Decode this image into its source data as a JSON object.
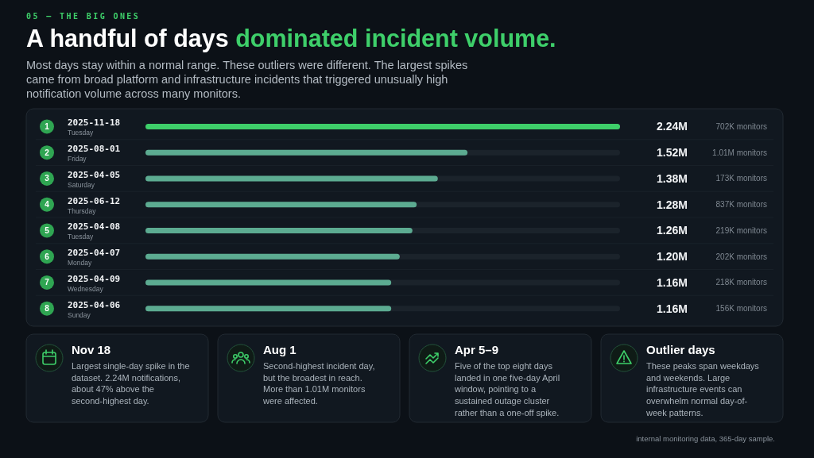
{
  "chart_data": {
    "type": "bar",
    "orientation": "horizontal",
    "title": "A handful of days dominated incident volume.",
    "subtitle": "Most days stay within a normal range. These outliers were different. The largest spikes came from broad platform and infrastructure incidents that triggered unusually high notification volume across many monitors.",
    "categories": [
      "2025-11-18\nTuesday",
      "2025-08-01\nFriday",
      "2025-04-05\nSaturday",
      "2025-06-12\nThursday",
      "2025-04-08\nTuesday",
      "2025-04-07\nMonday",
      "2025-04-09\nWednesday",
      "2025-04-06\nSunday"
    ],
    "values": [
      2.24,
      1.52,
      1.38,
      1.28,
      1.26,
      1.2,
      1.16,
      1.16
    ],
    "value_labels": [
      "2.24M",
      "1.52M",
      "1.38M",
      "1.28M",
      "1.26M",
      "1.20M",
      "1.16M",
      "1.16M"
    ],
    "colors": [
      "#3ecf6a",
      "#5cab91",
      "#5cab91",
      "#5cab91",
      "#5cab91",
      "#5cab91",
      "#5cab91",
      "#5cab91"
    ],
    "xlim": [
      0,
      2.24
    ],
    "tick_labels": "y",
    "annotations": [
      "05 — THE BIG ONES",
      "1",
      "702K monitors",
      "2",
      "1.01M monitors",
      "3",
      "173K monitors",
      "4",
      "837K monitors",
      "5",
      "219K monitors",
      "6",
      "202K monitors",
      "7",
      "218K monitors",
      "8",
      "156K monitors",
      "Nov 18",
      "Largest single-day spike in the\ndataset. 2.24M notifications,\nabout 47% above the\nsecond-highest day.",
      "Aug 1",
      "Second-highest incident day,\nbut the broadest in reach.\nMore than 1.01M monitors\nwere affected.",
      "Apr 5–9",
      "Five of the top eight days\nlanded in one five-day April\nwindow, pointing to a\nsustained outage cluster\nrather than a one-off spike.",
      "Outlier days",
      "These peaks span weekdays\nand weekends. Large\ninfrastructure events can\noverwhelm normal day-of-\nweek patterns.",
      "internal monitoring data, 365-day sample."
    ]
  }
}
